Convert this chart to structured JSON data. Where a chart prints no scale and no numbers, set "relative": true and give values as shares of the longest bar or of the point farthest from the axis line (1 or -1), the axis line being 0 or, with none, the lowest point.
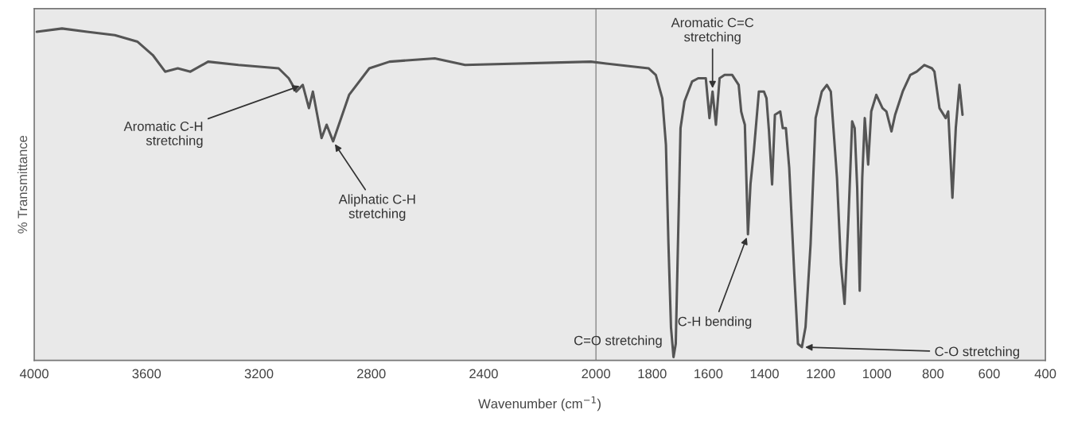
{
  "chart_data": {
    "type": "line",
    "relative": true,
    "xlabel": "Wavenumber (cm$^{−1}$)",
    "ylabel": "% Transmittance",
    "xlim": [
      4000,
      400
    ],
    "xticks": [
      4000,
      3600,
      3200,
      2800,
      2400,
      2000,
      1800,
      1600,
      1400,
      1200,
      1000,
      800,
      600,
      400
    ],
    "grid": false,
    "legend": false,
    "marker": "none",
    "line_style": "solid",
    "ref_lines": [
      {
        "axis": "x",
        "value": 2000,
        "color": "#999999"
      }
    ],
    "x": [
      3991,
      3901,
      3812,
      3713,
      3632,
      3578,
      3534,
      3489,
      3444,
      3381,
      3273,
      3130,
      3094,
      3067,
      3044,
      3022,
      3008,
      2977,
      2959,
      2936,
      2879,
      2807,
      2735,
      2574,
      2466,
      2018,
      1920,
      1813,
      1787,
      1764,
      1751,
      1742,
      1733,
      1724,
      1716,
      1699,
      1685,
      1658,
      1636,
      1609,
      1596,
      1585,
      1573,
      1560,
      1542,
      1515,
      1492,
      1483,
      1477,
      1470,
      1459,
      1450,
      1438,
      1420,
      1402,
      1393,
      1384,
      1373,
      1363,
      1344,
      1335,
      1324,
      1312,
      1294,
      1281,
      1267,
      1254,
      1236,
      1218,
      1196,
      1178,
      1164,
      1142,
      1128,
      1115,
      1101,
      1088,
      1079,
      1070,
      1061,
      1052,
      1043,
      1031,
      1020,
      1002,
      980,
      966,
      948,
      935,
      908,
      881,
      858,
      831,
      804,
      795,
      777,
      755,
      746,
      731,
      719,
      706,
      695
    ],
    "series": [
      {
        "color": "#555555",
        "values": [
          0.99,
          1.0,
          0.99,
          0.98,
          0.96,
          0.92,
          0.87,
          0.88,
          0.87,
          0.9,
          0.89,
          0.88,
          0.85,
          0.81,
          0.83,
          0.76,
          0.81,
          0.67,
          0.71,
          0.66,
          0.8,
          0.88,
          0.9,
          0.91,
          0.89,
          0.9,
          0.89,
          0.88,
          0.86,
          0.79,
          0.65,
          0.35,
          0.1,
          0.01,
          0.05,
          0.7,
          0.78,
          0.84,
          0.85,
          0.85,
          0.73,
          0.81,
          0.71,
          0.85,
          0.86,
          0.86,
          0.83,
          0.75,
          0.73,
          0.71,
          0.38,
          0.53,
          0.63,
          0.81,
          0.81,
          0.79,
          0.69,
          0.53,
          0.74,
          0.75,
          0.7,
          0.7,
          0.58,
          0.26,
          0.05,
          0.04,
          0.1,
          0.35,
          0.73,
          0.81,
          0.83,
          0.81,
          0.55,
          0.29,
          0.17,
          0.43,
          0.72,
          0.7,
          0.52,
          0.21,
          0.55,
          0.73,
          0.59,
          0.75,
          0.8,
          0.76,
          0.75,
          0.69,
          0.74,
          0.81,
          0.86,
          0.87,
          0.89,
          0.88,
          0.87,
          0.76,
          0.73,
          0.75,
          0.49,
          0.7,
          0.83,
          0.74
        ]
      }
    ],
    "annotations": [
      {
        "text": "Aromatic C-H\nstretching",
        "x": 3044,
        "y": 0.83
      },
      {
        "text": "Aliphatic C-H\nstretching",
        "x": 2936,
        "y": 0.66
      },
      {
        "text": "Aromatic C=C\nstretching",
        "x": 1585,
        "y": 0.81
      },
      {
        "text": "C=O stretching",
        "x": 1724,
        "y": 0.01
      },
      {
        "text": "C-H bending",
        "x": 1459,
        "y": 0.38
      },
      {
        "text": "C-O stretching",
        "x": 1267,
        "y": 0.04
      }
    ]
  }
}
